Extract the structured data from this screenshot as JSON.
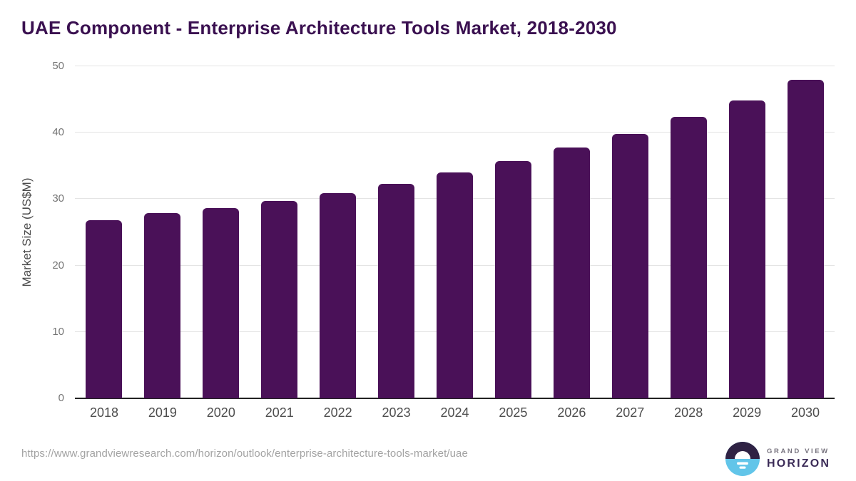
{
  "chart_data": {
    "type": "bar",
    "title": "UAE Component - Enterprise Architecture Tools Market, 2018-2030",
    "categories": [
      "2018",
      "2019",
      "2020",
      "2021",
      "2022",
      "2023",
      "2024",
      "2025",
      "2026",
      "2027",
      "2028",
      "2029",
      "2030"
    ],
    "values": [
      26.8,
      27.9,
      28.6,
      29.7,
      30.9,
      32.3,
      34.0,
      35.7,
      37.8,
      39.8,
      42.4,
      44.9,
      48.0
    ],
    "xlabel": "",
    "ylabel": "Market Size (US$M)",
    "ylim": [
      0,
      50
    ],
    "yticks": [
      0,
      10,
      20,
      30,
      40,
      50
    ],
    "grid": "horizontal",
    "legend": "none",
    "bar_color": "#4a1158"
  },
  "footer": {
    "source_url": "https://www.grandviewresearch.com/horizon/outlook/enterprise-architecture-tools-market/uae",
    "logo": {
      "line1": "GRAND VIEW",
      "line2": "HORIZON"
    }
  },
  "colors": {
    "title_text": "#3a1050",
    "bar": "#4a1158",
    "axis_line": "#222222",
    "gridline": "#e4e4e4",
    "tick_text": "#757575",
    "xtick_text": "#4d4d4d",
    "url_text": "#a3a3a3",
    "logo_dark": "#2f2244",
    "logo_blue": "#62c5e9",
    "logo_horizon_text": "#3b2b57",
    "logo_grandview_text": "#78747f"
  }
}
